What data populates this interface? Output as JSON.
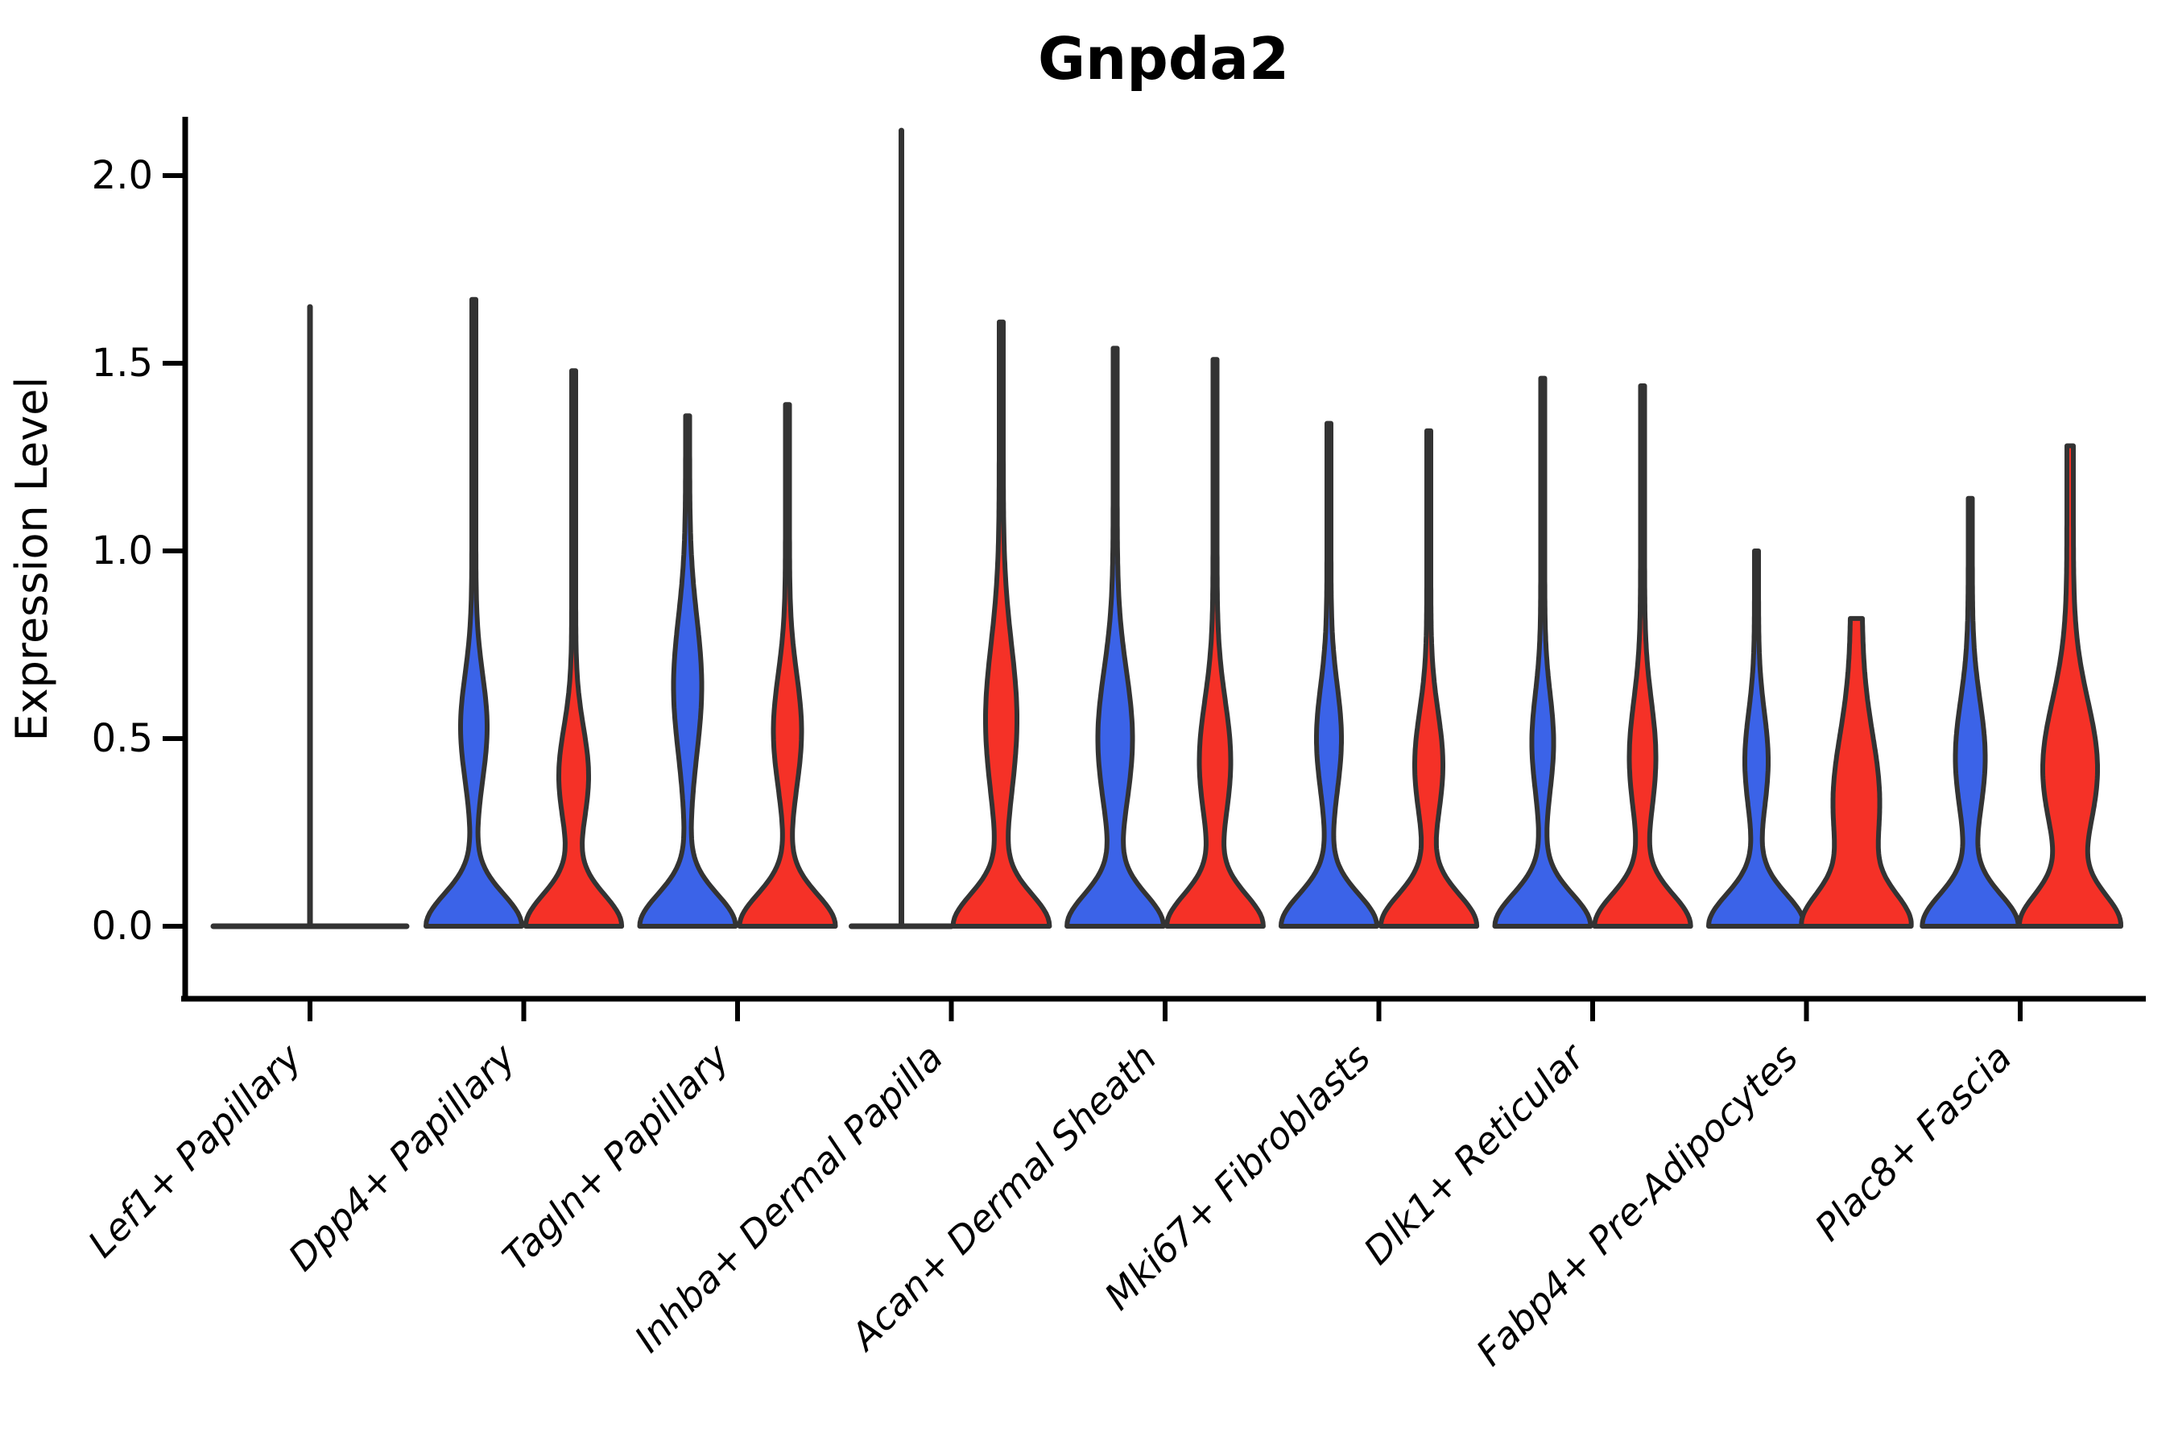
{
  "title": "Gnpda2",
  "axes": {
    "ylabel": "Expression Level",
    "yticks": [
      {
        "value": 0.0,
        "label": "0.0"
      },
      {
        "value": 0.5,
        "label": "0.5"
      },
      {
        "value": 1.0,
        "label": "1.0"
      },
      {
        "value": 1.5,
        "label": "1.5"
      },
      {
        "value": 2.0,
        "label": "2.0"
      }
    ]
  },
  "chart_data": {
    "type": "violin",
    "title": "Gnpda2",
    "xlabel": "",
    "ylabel": "Expression Level",
    "ylim": [
      -0.12,
      2.25
    ],
    "grid": false,
    "legend": "none",
    "categories": [
      "Lef1+ Papillary",
      "Dpp4+ Papillary",
      "Tagln+ Papillary",
      "Inhba+ Dermal Papilla",
      "Acan+ Dermal Sheath",
      "Mki67+ Fibroblasts",
      "Dlk1+ Reticular",
      "Fabp4+ Pre-Adipocytes",
      "Plac8+ Fascia"
    ],
    "colors": {
      "blue_fill": "#3B63E8",
      "red_fill": "#F53127",
      "outline": "#333333",
      "spine": "#000000"
    },
    "violins": [
      {
        "category": "Lef1+ Papillary",
        "single_collapsed": {
          "flat_halfwidth": 120,
          "line_max": 1.65
        }
      },
      {
        "category": "Dpp4+ Papillary",
        "blue": {
          "max": 1.67,
          "bulge_center": 0.53,
          "bulge_sigma": 0.14,
          "bulge_halfwidth": 14
        },
        "red": {
          "max": 1.48,
          "bulge_center": 0.4,
          "bulge_sigma": 0.13,
          "bulge_halfwidth": 16
        }
      },
      {
        "category": "Tagln+ Papillary",
        "blue": {
          "max": 1.36,
          "bulge_center": 0.64,
          "bulge_sigma": 0.18,
          "bulge_halfwidth": 15
        },
        "red": {
          "max": 1.39,
          "bulge_center": 0.52,
          "bulge_sigma": 0.15,
          "bulge_halfwidth": 15
        }
      },
      {
        "category": "Inhba+ Dermal Papilla",
        "blue": {
          "collapsed": true,
          "flat_halfwidth": 62,
          "line_max": 2.12
        },
        "red": {
          "max": 1.61,
          "bulge_center": 0.55,
          "bulge_sigma": 0.2,
          "bulge_halfwidth": 17
        }
      },
      {
        "category": "Acan+ Dermal Sheath",
        "blue": {
          "max": 1.54,
          "bulge_center": 0.5,
          "bulge_sigma": 0.18,
          "bulge_halfwidth": 19
        },
        "red": {
          "max": 1.51,
          "bulge_center": 0.44,
          "bulge_sigma": 0.16,
          "bulge_halfwidth": 17
        }
      },
      {
        "category": "Mki67+ Fibroblasts",
        "blue": {
          "max": 1.34,
          "bulge_center": 0.5,
          "bulge_sigma": 0.14,
          "bulge_halfwidth": 13
        },
        "red": {
          "max": 1.32,
          "bulge_center": 0.43,
          "bulge_sigma": 0.14,
          "bulge_halfwidth": 15
        }
      },
      {
        "category": "Dlk1+ Reticular",
        "blue": {
          "max": 1.46,
          "bulge_center": 0.49,
          "bulge_sigma": 0.13,
          "bulge_halfwidth": 11
        },
        "red": {
          "max": 1.44,
          "bulge_center": 0.45,
          "bulge_sigma": 0.15,
          "bulge_halfwidth": 14
        }
      },
      {
        "category": "Fabp4+ Pre-Adipocytes",
        "blue": {
          "max": 1.0,
          "bulge_center": 0.44,
          "bulge_sigma": 0.13,
          "bulge_halfwidth": 12
        },
        "red": {
          "max": 0.82,
          "bulge_center": 0.33,
          "bulge_sigma": 0.18,
          "bulge_halfwidth": 22,
          "spike_halfwidth": 7
        }
      },
      {
        "category": "Plac8+ Fascia",
        "blue": {
          "max": 1.14,
          "bulge_center": 0.45,
          "bulge_sigma": 0.15,
          "bulge_halfwidth": 16
        },
        "red": {
          "max": 1.28,
          "bulge_center": 0.42,
          "bulge_sigma": 0.18,
          "bulge_halfwidth": 30,
          "spike_halfwidth": 4
        }
      }
    ]
  }
}
